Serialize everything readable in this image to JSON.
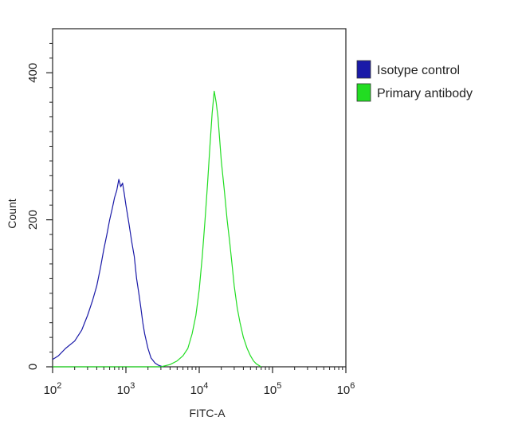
{
  "chart_data": {
    "type": "line",
    "title": "",
    "xlabel": "FITC-A",
    "ylabel": "Count",
    "x_scale": "log",
    "xlim": [
      100,
      1000000
    ],
    "ylim": [
      0,
      460
    ],
    "x_ticks": [
      {
        "value": 100,
        "base": "10",
        "exp": "2"
      },
      {
        "value": 1000,
        "base": "10",
        "exp": "3"
      },
      {
        "value": 10000,
        "base": "10",
        "exp": "4"
      },
      {
        "value": 100000,
        "base": "10",
        "exp": "5"
      },
      {
        "value": 1000000,
        "base": "10",
        "exp": "6"
      }
    ],
    "y_ticks": [
      {
        "value": 0,
        "label": "0"
      },
      {
        "value": 200,
        "label": "200"
      },
      {
        "value": 400,
        "label": "400"
      }
    ],
    "legend": {
      "placement": "right-top"
    },
    "grid": false,
    "series": [
      {
        "name": "Isotype control",
        "color": "#1a1aa8",
        "x": [
          100,
          120,
          150,
          200,
          250,
          300,
          350,
          400,
          450,
          500,
          550,
          600,
          650,
          700,
          750,
          800,
          850,
          900,
          950,
          1000,
          1100,
          1200,
          1300,
          1400,
          1500,
          1600,
          1700,
          1800,
          2000,
          2200,
          2500,
          2800,
          3200
        ],
        "y": [
          10,
          15,
          25,
          35,
          50,
          70,
          90,
          110,
          135,
          160,
          180,
          200,
          215,
          230,
          240,
          255,
          245,
          250,
          235,
          220,
          195,
          170,
          150,
          120,
          100,
          80,
          60,
          45,
          25,
          12,
          5,
          2,
          0
        ]
      },
      {
        "name": "Primary antibody",
        "color": "#22dd22",
        "x": [
          100,
          1000,
          3000,
          4000,
          5000,
          6000,
          7000,
          8000,
          9000,
          10000,
          11000,
          12000,
          13000,
          14000,
          15000,
          16000,
          17000,
          18000,
          19000,
          20000,
          22000,
          24000,
          26000,
          28000,
          30000,
          33000,
          36000,
          40000,
          45000,
          50000,
          55000,
          60000,
          70000
        ],
        "y": [
          0,
          0,
          0,
          3,
          8,
          15,
          25,
          45,
          70,
          105,
          150,
          200,
          250,
          300,
          345,
          375,
          360,
          340,
          310,
          280,
          240,
          200,
          170,
          140,
          110,
          80,
          60,
          40,
          25,
          15,
          8,
          4,
          0
        ]
      }
    ]
  }
}
